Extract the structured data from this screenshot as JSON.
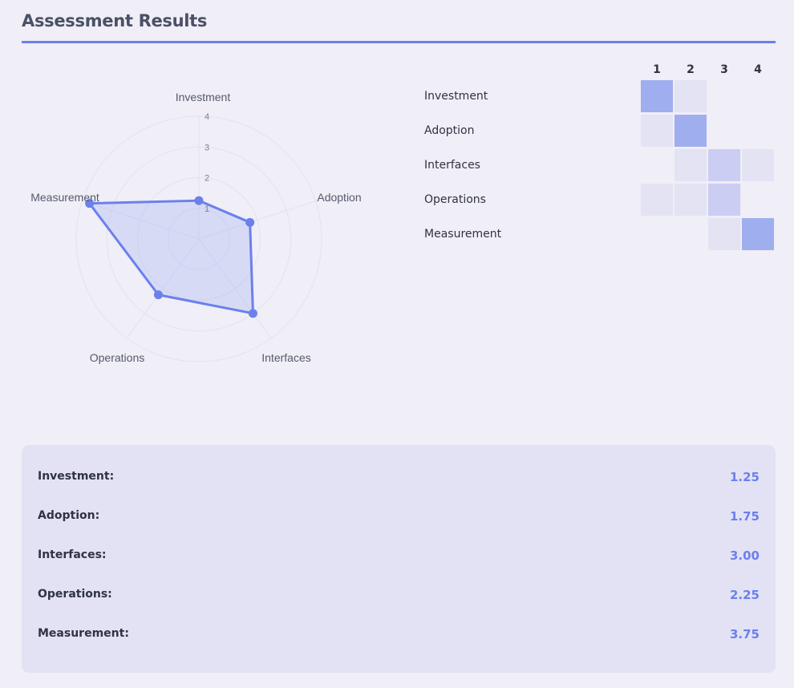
{
  "header": {
    "title": "Assessment Results"
  },
  "colors": {
    "accent": "#6b80ec",
    "fill": "rgba(107,128,236,0.18)",
    "heat_levels": [
      "transparent",
      "#e3e3f4",
      "#cbcdf3",
      "#9faeef"
    ]
  },
  "chart_data": {
    "type": "radar",
    "categories": [
      "Investment",
      "Adoption",
      "Interfaces",
      "Operations",
      "Measurement"
    ],
    "values": [
      1.25,
      1.75,
      3.0,
      2.25,
      3.75
    ],
    "radial_range": [
      0,
      4
    ],
    "radial_ticks": [
      "1",
      "2",
      "3",
      "4"
    ],
    "grid": true
  },
  "heatmap": {
    "columns": [
      "1",
      "2",
      "3",
      "4"
    ],
    "rows": [
      {
        "label": "Investment",
        "counts": [
          3,
          1,
          0,
          0
        ]
      },
      {
        "label": "Adoption",
        "counts": [
          1,
          3,
          0,
          0
        ]
      },
      {
        "label": "Interfaces",
        "counts": [
          0,
          1,
          2,
          1
        ]
      },
      {
        "label": "Operations",
        "counts": [
          1,
          1,
          2,
          0
        ]
      },
      {
        "label": "Measurement",
        "counts": [
          0,
          0,
          1,
          3
        ]
      }
    ]
  },
  "scores": [
    {
      "label": "Investment:",
      "value": "1.25"
    },
    {
      "label": "Adoption:",
      "value": "1.75"
    },
    {
      "label": "Interfaces:",
      "value": "3.00"
    },
    {
      "label": "Operations:",
      "value": "2.25"
    },
    {
      "label": "Measurement:",
      "value": "3.75"
    }
  ]
}
